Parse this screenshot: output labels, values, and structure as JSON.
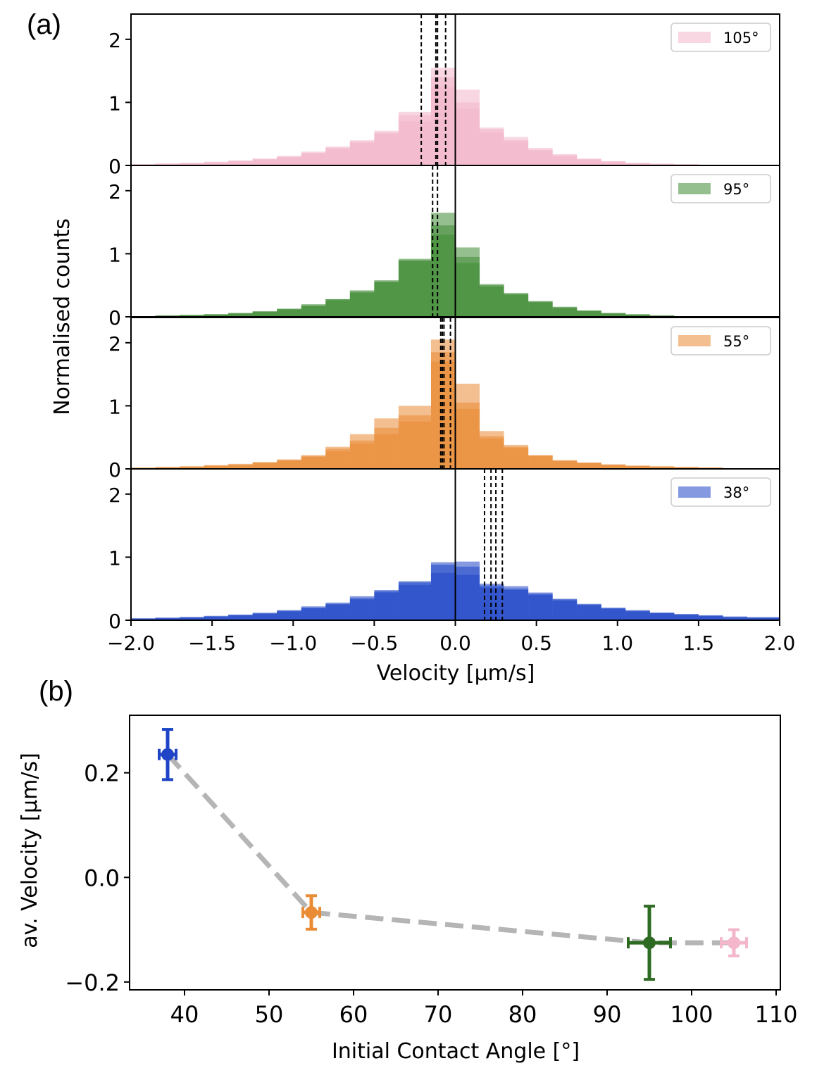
{
  "chart_data": [
    {
      "id": "a",
      "panel_label": "(a)",
      "type": "bar",
      "subtype": "stacked-histograms",
      "xlabel": "Velocity [μm/s]",
      "ylabel": "Normalised counts",
      "xlim": [
        -2.0,
        2.0
      ],
      "ylim": [
        0,
        2.4
      ],
      "xticks": [
        "−2.0",
        "−1.5",
        "−1.0",
        "−0.5",
        "0.0",
        "0.5",
        "1.0",
        "1.5",
        "2.0"
      ],
      "xtick_values": [
        -2.0,
        -1.5,
        -1.0,
        -0.5,
        0.0,
        0.5,
        1.0,
        1.5,
        2.0
      ],
      "yticks": [
        "0",
        "1",
        "2"
      ],
      "ytick_values": [
        0,
        1,
        2
      ],
      "bin_edges": [
        -2.0,
        -1.85,
        -1.7,
        -1.55,
        -1.4,
        -1.25,
        -1.1,
        -0.95,
        -0.8,
        -0.65,
        -0.5,
        -0.35,
        -0.15,
        0.0,
        0.15,
        0.3,
        0.45,
        0.6,
        0.75,
        0.9,
        1.05,
        1.2,
        1.35,
        1.5,
        1.65,
        1.8,
        2.0
      ],
      "series": [
        {
          "name": "105°",
          "legend": "105°",
          "color": "#f3b6cb",
          "layers": [
            [
              0.02,
              0.03,
              0.04,
              0.06,
              0.08,
              0.11,
              0.15,
              0.22,
              0.3,
              0.4,
              0.55,
              0.7,
              1.55,
              1.2,
              0.6,
              0.45,
              0.28,
              0.18,
              0.11,
              0.07,
              0.04,
              0.03,
              0.02,
              0.01,
              0.01,
              0.0
            ],
            [
              0.02,
              0.03,
              0.04,
              0.05,
              0.07,
              0.1,
              0.14,
              0.2,
              0.28,
              0.38,
              0.52,
              0.8,
              1.4,
              1.0,
              0.58,
              0.4,
              0.25,
              0.16,
              0.1,
              0.06,
              0.04,
              0.02,
              0.02,
              0.01,
              0.01,
              0.0
            ],
            [
              0.01,
              0.02,
              0.03,
              0.05,
              0.07,
              0.09,
              0.13,
              0.19,
              0.26,
              0.36,
              0.5,
              0.85,
              1.25,
              0.9,
              0.52,
              0.38,
              0.24,
              0.15,
              0.09,
              0.06,
              0.03,
              0.02,
              0.01,
              0.01,
              0.0,
              0.0
            ]
          ],
          "vlines": [
            -0.21,
            -0.12,
            -0.11,
            -0.06
          ]
        },
        {
          "name": "95°",
          "legend": "95°",
          "color": "#3f8a34",
          "layers": [
            [
              0.01,
              0.02,
              0.03,
              0.04,
              0.06,
              0.09,
              0.13,
              0.2,
              0.28,
              0.42,
              0.58,
              0.9,
              1.65,
              1.1,
              0.5,
              0.38,
              0.25,
              0.16,
              0.1,
              0.06,
              0.04,
              0.02,
              0.01,
              0.01,
              0.01,
              0.0
            ],
            [
              0.01,
              0.02,
              0.03,
              0.04,
              0.06,
              0.08,
              0.12,
              0.18,
              0.28,
              0.4,
              0.56,
              0.88,
              1.45,
              0.95,
              0.52,
              0.36,
              0.24,
              0.15,
              0.1,
              0.06,
              0.04,
              0.02,
              0.01,
              0.01,
              0.01,
              0.0
            ],
            [
              0.01,
              0.02,
              0.02,
              0.04,
              0.05,
              0.08,
              0.12,
              0.17,
              0.26,
              0.38,
              0.55,
              0.92,
              1.3,
              0.85,
              0.48,
              0.35,
              0.23,
              0.14,
              0.09,
              0.05,
              0.03,
              0.02,
              0.01,
              0.01,
              0.0,
              0.0
            ]
          ],
          "vlines": [
            -0.14,
            -0.11
          ]
        },
        {
          "name": "55°",
          "legend": "55°",
          "color": "#ea8b35",
          "layers": [
            [
              0.02,
              0.03,
              0.04,
              0.06,
              0.08,
              0.11,
              0.15,
              0.22,
              0.35,
              0.55,
              0.8,
              1.0,
              2.05,
              1.35,
              0.6,
              0.38,
              0.22,
              0.14,
              0.1,
              0.07,
              0.05,
              0.04,
              0.03,
              0.02,
              0.01,
              0.01
            ],
            [
              0.02,
              0.03,
              0.04,
              0.05,
              0.07,
              0.1,
              0.14,
              0.2,
              0.32,
              0.45,
              0.65,
              0.85,
              1.85,
              1.05,
              0.52,
              0.35,
              0.21,
              0.13,
              0.1,
              0.07,
              0.05,
              0.04,
              0.03,
              0.02,
              0.01,
              0.01
            ],
            [
              0.01,
              0.02,
              0.03,
              0.05,
              0.06,
              0.09,
              0.13,
              0.19,
              0.28,
              0.4,
              0.55,
              0.75,
              1.7,
              0.95,
              0.48,
              0.33,
              0.2,
              0.12,
              0.09,
              0.06,
              0.05,
              0.03,
              0.02,
              0.02,
              0.01,
              0.01
            ]
          ],
          "vlines": [
            -0.09,
            -0.08,
            -0.07,
            -0.03
          ]
        },
        {
          "name": "38°",
          "legend": "38°",
          "color": "#1f45c6",
          "layers": [
            [
              0.03,
              0.04,
              0.05,
              0.07,
              0.09,
              0.12,
              0.16,
              0.22,
              0.28,
              0.38,
              0.48,
              0.62,
              0.92,
              0.93,
              0.58,
              0.54,
              0.44,
              0.34,
              0.26,
              0.2,
              0.16,
              0.12,
              0.1,
              0.08,
              0.06,
              0.05
            ],
            [
              0.03,
              0.04,
              0.05,
              0.06,
              0.08,
              0.11,
              0.15,
              0.2,
              0.26,
              0.35,
              0.46,
              0.6,
              0.88,
              0.85,
              0.55,
              0.5,
              0.42,
              0.33,
              0.25,
              0.19,
              0.15,
              0.12,
              0.09,
              0.07,
              0.05,
              0.04
            ],
            [
              0.02,
              0.03,
              0.04,
              0.06,
              0.08,
              0.1,
              0.14,
              0.19,
              0.25,
              0.33,
              0.44,
              0.56,
              0.75,
              0.72,
              0.52,
              0.48,
              0.4,
              0.31,
              0.24,
              0.18,
              0.14,
              0.11,
              0.09,
              0.07,
              0.05,
              0.04
            ]
          ],
          "vlines": [
            0.18,
            0.22,
            0.25,
            0.29
          ]
        }
      ]
    },
    {
      "id": "b",
      "panel_label": "(b)",
      "type": "scatter",
      "xlabel": "Initial Contact Angle [°]",
      "ylabel": "av. Velocity [μm/s]",
      "xlim": [
        33.5,
        110.5
      ],
      "ylim": [
        -0.215,
        0.31
      ],
      "xticks": [
        "40",
        "50",
        "60",
        "70",
        "80",
        "90",
        "100",
        "110"
      ],
      "xtick_values": [
        40,
        50,
        60,
        70,
        80,
        90,
        100,
        110
      ],
      "yticks": [
        "0.2",
        "0.0",
        "−0.2"
      ],
      "ytick_values": [
        0.2,
        0.0,
        -0.2
      ],
      "line_color": "#b5b5b5",
      "points": [
        {
          "x": 38,
          "y": 0.235,
          "xerr": 1.0,
          "yerr": 0.048,
          "color": "#1f45c6"
        },
        {
          "x": 55,
          "y": -0.067,
          "xerr": 1.0,
          "yerr": 0.032,
          "color": "#ea8b35"
        },
        {
          "x": 95,
          "y": -0.125,
          "xerr": 2.5,
          "yerr": 0.07,
          "color": "#2d6b22"
        },
        {
          "x": 105,
          "y": -0.125,
          "xerr": 1.5,
          "yerr": 0.025,
          "color": "#f3b6cb"
        }
      ]
    }
  ]
}
